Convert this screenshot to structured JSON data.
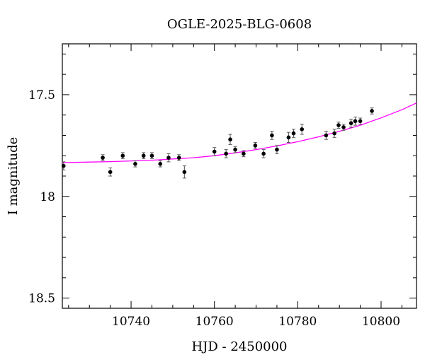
{
  "chart_data": {
    "type": "scatter",
    "title": "OGLE-2025-BLG-0608",
    "xlabel": "HJD - 2450000",
    "ylabel": "I magnitude",
    "xlim": [
      10723.5,
      10808.5
    ],
    "ylim": [
      17.25,
      18.55
    ],
    "y_inverted": true,
    "grid": false,
    "x_ticks": [
      10740,
      10760,
      10780,
      10800
    ],
    "y_ticks": [
      17.5,
      18,
      18.5
    ],
    "x_tick_labels": [
      "10740",
      "10760",
      "10780",
      "10800"
    ],
    "y_tick_labels": [
      "17.5",
      "18",
      "18.5"
    ],
    "colors": {
      "data": "#000000",
      "model": "#ff00ff",
      "errorbar": "#555555"
    },
    "series": [
      {
        "kind": "points_with_errors",
        "points": [
          {
            "x": 10723.8,
            "y": 17.85,
            "err": 0.02
          },
          {
            "x": 10733.2,
            "y": 17.81,
            "err": 0.015
          },
          {
            "x": 10735.0,
            "y": 17.88,
            "err": 0.02
          },
          {
            "x": 10738.0,
            "y": 17.8,
            "err": 0.015
          },
          {
            "x": 10741.0,
            "y": 17.84,
            "err": 0.015
          },
          {
            "x": 10743.0,
            "y": 17.8,
            "err": 0.015
          },
          {
            "x": 10745.0,
            "y": 17.8,
            "err": 0.015
          },
          {
            "x": 10747.0,
            "y": 17.84,
            "err": 0.015
          },
          {
            "x": 10749.0,
            "y": 17.81,
            "err": 0.02
          },
          {
            "x": 10751.5,
            "y": 17.81,
            "err": 0.015
          },
          {
            "x": 10752.8,
            "y": 17.88,
            "err": 0.03
          },
          {
            "x": 10760.0,
            "y": 17.78,
            "err": 0.02
          },
          {
            "x": 10762.8,
            "y": 17.79,
            "err": 0.02
          },
          {
            "x": 10763.8,
            "y": 17.72,
            "err": 0.025
          },
          {
            "x": 10765.0,
            "y": 17.77,
            "err": 0.015
          },
          {
            "x": 10767.0,
            "y": 17.79,
            "err": 0.015
          },
          {
            "x": 10769.8,
            "y": 17.75,
            "err": 0.015
          },
          {
            "x": 10771.8,
            "y": 17.79,
            "err": 0.02
          },
          {
            "x": 10773.8,
            "y": 17.7,
            "err": 0.02
          },
          {
            "x": 10775.0,
            "y": 17.77,
            "err": 0.02
          },
          {
            "x": 10777.8,
            "y": 17.71,
            "err": 0.025
          },
          {
            "x": 10779.0,
            "y": 17.69,
            "err": 0.02
          },
          {
            "x": 10781.0,
            "y": 17.67,
            "err": 0.025
          },
          {
            "x": 10786.8,
            "y": 17.7,
            "err": 0.02
          },
          {
            "x": 10788.8,
            "y": 17.69,
            "err": 0.02
          },
          {
            "x": 10789.8,
            "y": 17.65,
            "err": 0.015
          },
          {
            "x": 10791.0,
            "y": 17.66,
            "err": 0.015
          },
          {
            "x": 10792.8,
            "y": 17.64,
            "err": 0.02
          },
          {
            "x": 10793.8,
            "y": 17.63,
            "err": 0.02
          },
          {
            "x": 10795.0,
            "y": 17.63,
            "err": 0.015
          },
          {
            "x": 10797.8,
            "y": 17.58,
            "err": 0.015
          }
        ]
      },
      {
        "kind": "model_curve",
        "points": [
          {
            "x": 10723.5,
            "y": 17.834
          },
          {
            "x": 10735.0,
            "y": 17.829
          },
          {
            "x": 10745.0,
            "y": 17.822
          },
          {
            "x": 10755.0,
            "y": 17.81
          },
          {
            "x": 10760.0,
            "y": 17.8
          },
          {
            "x": 10765.0,
            "y": 17.786
          },
          {
            "x": 10770.0,
            "y": 17.77
          },
          {
            "x": 10775.0,
            "y": 17.752
          },
          {
            "x": 10780.0,
            "y": 17.731
          },
          {
            "x": 10785.0,
            "y": 17.707
          },
          {
            "x": 10790.0,
            "y": 17.68
          },
          {
            "x": 10795.0,
            "y": 17.65
          },
          {
            "x": 10800.0,
            "y": 17.614
          },
          {
            "x": 10805.0,
            "y": 17.574
          },
          {
            "x": 10808.5,
            "y": 17.541
          }
        ]
      }
    ]
  }
}
